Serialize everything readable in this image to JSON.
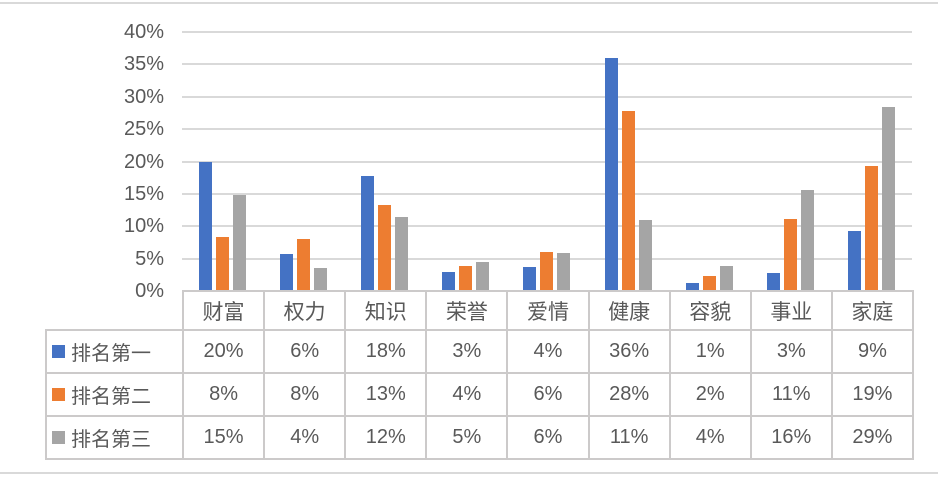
{
  "chart_data": {
    "type": "bar",
    "categories": [
      "财富",
      "权力",
      "知识",
      "荣誉",
      "爱情",
      "健康",
      "容貌",
      "事业",
      "家庭"
    ],
    "series": [
      {
        "name": "排名第一",
        "color": "#4472C4",
        "values": [
          20,
          6,
          18,
          3,
          4,
          36,
          1,
          3,
          9
        ],
        "display": [
          "20%",
          "6%",
          "18%",
          "3%",
          "4%",
          "36%",
          "1%",
          "3%",
          "9%"
        ],
        "bar_heights_pct": [
          20,
          5.7,
          17.7,
          3,
          3.7,
          36,
          1.3,
          2.8,
          9.3
        ]
      },
      {
        "name": "排名第二",
        "color": "#ED7D31",
        "values": [
          8,
          8,
          13,
          4,
          6,
          28,
          2,
          11,
          19
        ],
        "display": [
          "8%",
          "8%",
          "13%",
          "4%",
          "6%",
          "28%",
          "2%",
          "11%",
          "19%"
        ],
        "bar_heights_pct": [
          8.4,
          8,
          13.3,
          3.9,
          6.1,
          27.8,
          2.4,
          11.1,
          19.3
        ]
      },
      {
        "name": "排名第三",
        "color": "#A5A5A5",
        "values": [
          15,
          4,
          12,
          5,
          6,
          11,
          4,
          16,
          29
        ],
        "display": [
          "15%",
          "4%",
          "12%",
          "5%",
          "6%",
          "11%",
          "4%",
          "16%",
          "29%"
        ],
        "bar_heights_pct": [
          14.9,
          3.6,
          11.4,
          4.5,
          5.8,
          11,
          3.9,
          15.6,
          28.5
        ]
      }
    ],
    "y_axis": {
      "ticks": [
        "40%",
        "35%",
        "30%",
        "25%",
        "20%",
        "15%",
        "10%",
        "5%",
        "0%"
      ],
      "tick_values": [
        40,
        35,
        30,
        25,
        20,
        15,
        10,
        5,
        0
      ],
      "min": 0,
      "max": 40,
      "unit": "%"
    },
    "grid": true,
    "legend_position": "table-row-headers"
  },
  "colors": {
    "background": "#FFFFFF",
    "gridline": "#D9D9D9",
    "table_border": "#CCCACA",
    "text": "#595959",
    "frame_edge": "#D9D9D9"
  }
}
